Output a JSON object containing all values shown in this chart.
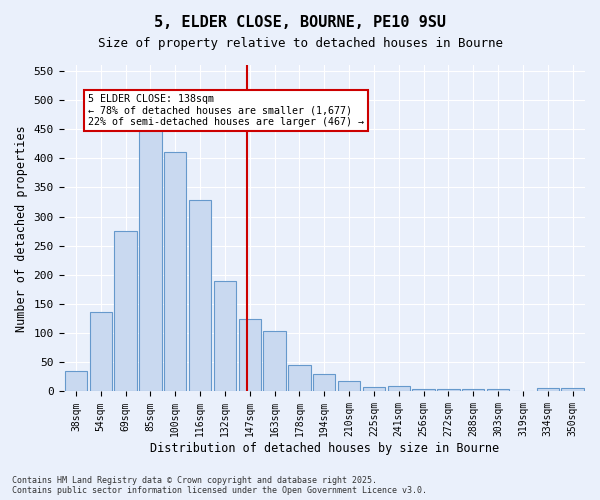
{
  "title1": "5, ELDER CLOSE, BOURNE, PE10 9SU",
  "title2": "Size of property relative to detached houses in Bourne",
  "xlabel": "Distribution of detached houses by size in Bourne",
  "ylabel": "Number of detached properties",
  "categories": [
    "38sqm",
    "54sqm",
    "69sqm",
    "85sqm",
    "100sqm",
    "116sqm",
    "132sqm",
    "147sqm",
    "163sqm",
    "178sqm",
    "194sqm",
    "210sqm",
    "225sqm",
    "241sqm",
    "256sqm",
    "272sqm",
    "288sqm",
    "303sqm",
    "319sqm",
    "334sqm",
    "350sqm"
  ],
  "values": [
    35,
    136,
    275,
    450,
    410,
    328,
    190,
    125,
    103,
    46,
    30,
    18,
    8,
    9,
    5,
    5,
    4,
    5,
    0,
    6,
    6
  ],
  "bar_color": "#c9d9f0",
  "bar_edge_color": "#6699cc",
  "ref_line_label": "5 ELDER CLOSE: 138sqm",
  "annotation_line1": "← 78% of detached houses are smaller (1,677)",
  "annotation_line2": "22% of semi-detached houses are larger (467) →",
  "annotation_box_color": "#ffffff",
  "annotation_box_edge": "#cc0000",
  "ref_line_color": "#cc0000",
  "ref_line_x": 6.9,
  "ylim": [
    0,
    560
  ],
  "yticks": [
    0,
    50,
    100,
    150,
    200,
    250,
    300,
    350,
    400,
    450,
    500,
    550
  ],
  "background_color": "#eaf0fb",
  "footer1": "Contains HM Land Registry data © Crown copyright and database right 2025.",
  "footer2": "Contains public sector information licensed under the Open Government Licence v3.0."
}
